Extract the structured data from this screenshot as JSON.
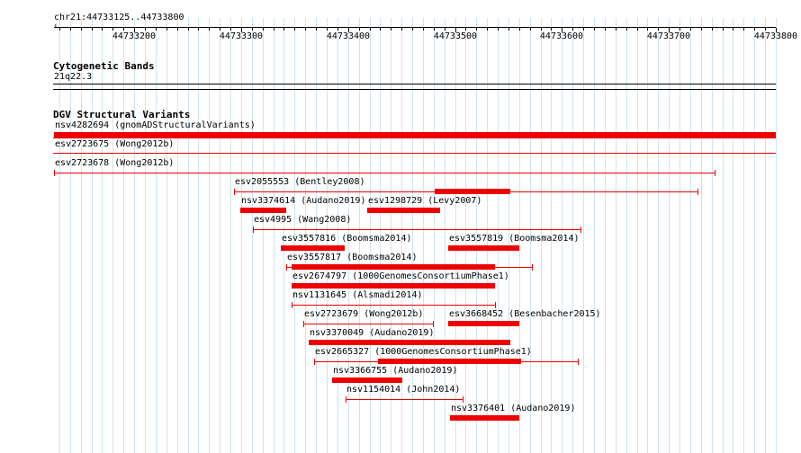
{
  "ruler": {
    "location": "chr21:44733125..44733800",
    "ticks": [
      "44733200",
      "44733300",
      "44733400",
      "44733500",
      "44733600",
      "44733700",
      "44733800"
    ]
  },
  "cytogenetic": {
    "title": "Cytogenetic Bands",
    "band": "21q22.3"
  },
  "dgv": {
    "title": "DGV Structural Variants",
    "color": "#ee0000",
    "features": [
      {
        "id": "nsv4282694",
        "source": "gnomADStructuralVariants",
        "label": "nsv4282694 (gnomADStructuralVariants)",
        "start": 44733125,
        "end": 44733800,
        "style": "solid"
      },
      {
        "id": "esv2723675",
        "source": "Wong2012b",
        "label": "esv2723675 (Wong2012b)",
        "start": 44733125,
        "end": 44733800,
        "style": "thin"
      },
      {
        "id": "esv2723678",
        "source": "Wong2012b",
        "label": "esv2723678 (Wong2012b)",
        "start": 44733125,
        "end": 44733743,
        "style": "line"
      },
      {
        "id": "esv2055553",
        "source": "Bentley2008",
        "label": "esv2055553 (Bentley2008)",
        "start": 44733293,
        "end": 44733727,
        "style": "line",
        "thick": [
          44733481,
          44733552
        ]
      },
      {
        "id": "nsv3374614",
        "source": "Audano2019",
        "label": "nsv3374614 (Audano2019)",
        "start": 44733299,
        "end": 44733342,
        "style": "solid"
      },
      {
        "id": "esv1298729",
        "source": "Levy2007",
        "label": "esv1298729 (Levy2007)",
        "start": 44733418,
        "end": 44733486,
        "style": "solid"
      },
      {
        "id": "esv4995",
        "source": "Wang2008",
        "label": "esv4995 (Wang2008)",
        "start": 44733311,
        "end": 44733617,
        "style": "line"
      },
      {
        "id": "esv3557816",
        "source": "Boomsma2014",
        "label": "esv3557816 (Boomsma2014)",
        "start": 44733337,
        "end": 44733397,
        "style": "solid"
      },
      {
        "id": "esv3557819",
        "source": "Boomsma2014",
        "label": "esv3557819 (Boomsma2014)",
        "start": 44733494,
        "end": 44733560,
        "style": "solid"
      },
      {
        "id": "esv3557817",
        "source": "Boomsma2014",
        "label": "esv3557817 (Boomsma2014)",
        "start": 44733342,
        "end": 44733572,
        "style": "line",
        "thick": [
          44733347,
          44733537
        ]
      },
      {
        "id": "esv2674797",
        "source": "1000GenomesConsortiumPhase1",
        "label": "esv2674797 (1000GenomesConsortiumPhase1)",
        "start": 44733347,
        "end": 44733537,
        "style": "solid"
      },
      {
        "id": "nsv1131645",
        "source": "Alsmadi2014",
        "label": "nsv1131645 (Alsmadi2014)",
        "start": 44733347,
        "end": 44733537,
        "style": "line"
      },
      {
        "id": "esv2723679",
        "source": "Wong2012b",
        "label": "esv2723679 (Wong2012b)",
        "start": 44733358,
        "end": 44733479,
        "style": "line"
      },
      {
        "id": "esv3668452",
        "source": "Besenbacher2015",
        "label": "esv3668452 (Besenbacher2015)",
        "start": 44733494,
        "end": 44733560,
        "style": "solid"
      },
      {
        "id": "nsv3370049",
        "source": "Audano2019",
        "label": "nsv3370049 (Audano2019)",
        "start": 44733363,
        "end": 44733552,
        "style": "solid"
      },
      {
        "id": "esv2665327",
        "source": "1000GenomesConsortiumPhase1",
        "label": "esv2665327 (1000GenomesConsortiumPhase1)",
        "start": 44733368,
        "end": 44733615,
        "style": "line",
        "thick": [
          44733428,
          44733562
        ]
      },
      {
        "id": "nsv3366755",
        "source": "Audano2019",
        "label": "nsv3366755 (Audano2019)",
        "start": 44733385,
        "end": 44733451,
        "style": "solid"
      },
      {
        "id": "nsv1154014",
        "source": "John2014",
        "label": "nsv1154014 (John2014)",
        "start": 44733398,
        "end": 44733507,
        "style": "line"
      },
      {
        "id": "nsv3376401",
        "source": "Audano2019",
        "label": "nsv3376401 (Audano2019)",
        "start": 44733495,
        "end": 44733560,
        "style": "solid"
      }
    ]
  }
}
